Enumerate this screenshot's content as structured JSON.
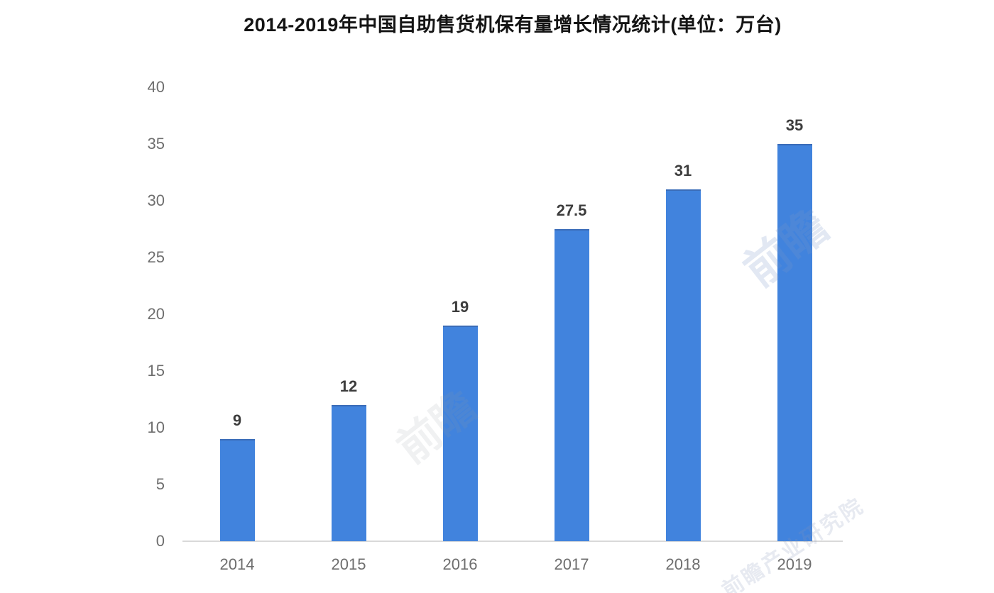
{
  "title": "2014-2019年中国自助售货机保有量增长情况统计(单位：万台)",
  "chart_data": {
    "type": "bar",
    "title": "2014-2019年中国自助售货机保有量增长情况统计(单位：万台)",
    "categories": [
      "2014",
      "2015",
      "2016",
      "2017",
      "2018",
      "2019"
    ],
    "values": [
      9,
      12,
      19,
      27.5,
      31,
      35
    ],
    "value_labels": [
      "9",
      "12",
      "19",
      "27.5",
      "31",
      "35"
    ],
    "xlabel": "",
    "ylabel": "",
    "unit": "万台",
    "ylim": [
      0,
      40
    ],
    "yticks": [
      0,
      5,
      10,
      15,
      20,
      25,
      30,
      35,
      40
    ],
    "grid": false,
    "legend_position": "none",
    "bar_color": "#4183dd"
  },
  "colors": {
    "background": "#ffffff",
    "bar": "#4183dd",
    "bar_top_edge": "#3a6cb8",
    "axis_line": "#d9d9d9",
    "tick_label": "#6e6e6e",
    "value_label": "#3d3d3d",
    "title": "#141414"
  },
  "watermarks": [
    {
      "text": "前瞻"
    },
    {
      "text": "前瞻"
    },
    {
      "text": "前瞻产业研究院"
    }
  ]
}
